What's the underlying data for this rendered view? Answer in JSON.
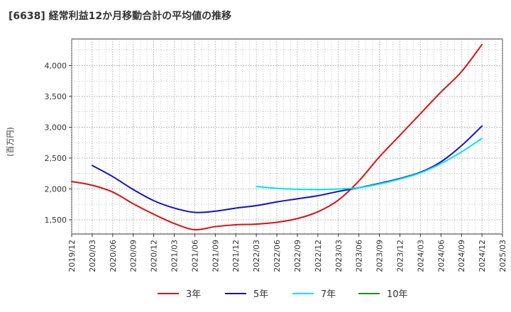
{
  "chart_data": {
    "type": "line",
    "title": "[6638]  経常利益12か月移動合計の平均値の推移",
    "ylabel": "(百万円)",
    "xlabel": "",
    "ylim": [
      1270,
      4430
    ],
    "yticks": [
      1500,
      2000,
      2500,
      3000,
      3500,
      4000
    ],
    "ytick_labels": [
      "1,500",
      "2,000",
      "2,500",
      "3,000",
      "3,500",
      "4,000"
    ],
    "x_start": "2019/12",
    "x_end": "2025/03",
    "xticks": [
      "2019/12",
      "2020/03",
      "2020/06",
      "2020/09",
      "2020/12",
      "2021/03",
      "2021/06",
      "2021/09",
      "2021/12",
      "2022/03",
      "2022/06",
      "2022/09",
      "2022/12",
      "2023/03",
      "2023/06",
      "2023/09",
      "2023/12",
      "2024/03",
      "2024/06",
      "2024/09",
      "2024/12",
      "2025/03"
    ],
    "grid": true,
    "series": [
      {
        "name": "3年",
        "color": "#dd1111",
        "x": [
          "2019/12",
          "2020/03",
          "2020/06",
          "2020/09",
          "2020/12",
          "2021/03",
          "2021/06",
          "2021/09",
          "2021/12",
          "2022/03",
          "2022/06",
          "2022/09",
          "2022/12",
          "2023/03",
          "2023/06",
          "2023/09",
          "2023/12",
          "2024/03",
          "2024/06",
          "2024/09",
          "2024/12"
        ],
        "values": [
          2120,
          2060,
          1950,
          1760,
          1590,
          1440,
          1340,
          1390,
          1420,
          1430,
          1460,
          1520,
          1630,
          1820,
          2130,
          2520,
          2870,
          3220,
          3570,
          3900,
          4340
        ]
      },
      {
        "name": "5年",
        "color": "#1111cc",
        "x": [
          "2020/03",
          "2020/06",
          "2020/09",
          "2020/12",
          "2021/03",
          "2021/06",
          "2021/09",
          "2021/12",
          "2022/03",
          "2022/06",
          "2022/09",
          "2022/12",
          "2023/03",
          "2023/06",
          "2023/09",
          "2023/12",
          "2024/03",
          "2024/06",
          "2024/09",
          "2024/12"
        ],
        "values": [
          2380,
          2200,
          1990,
          1810,
          1690,
          1620,
          1640,
          1690,
          1730,
          1790,
          1840,
          1890,
          1960,
          2020,
          2090,
          2170,
          2270,
          2440,
          2700,
          3020
        ]
      },
      {
        "name": "7年",
        "color": "#00e5ee",
        "x": [
          "2022/03",
          "2022/06",
          "2022/09",
          "2022/12",
          "2023/03",
          "2023/06",
          "2023/09",
          "2023/12",
          "2024/03",
          "2024/06",
          "2024/09",
          "2024/12"
        ],
        "values": [
          2040,
          2010,
          1995,
          1990,
          2000,
          2020,
          2080,
          2160,
          2260,
          2410,
          2600,
          2820
        ]
      },
      {
        "name": "10年",
        "color": "#228b22",
        "x": [],
        "values": []
      }
    ]
  }
}
